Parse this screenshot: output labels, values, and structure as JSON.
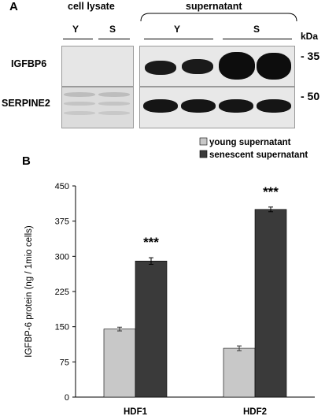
{
  "panel_a": {
    "label": "A",
    "header_cell_lysate": "cell lysate",
    "header_supernatant": "supernatant",
    "lane_labels_lysate": [
      "Y",
      "S"
    ],
    "lane_labels_supernatant": [
      "Y",
      "S"
    ],
    "units_label": "kDa",
    "rows": [
      {
        "name": "IGFBP6",
        "marker": "- 35"
      },
      {
        "name": "SERPINE2",
        "marker": "- 50"
      }
    ]
  },
  "panel_b": {
    "label": "B"
  },
  "chart_data": {
    "type": "bar",
    "categories": [
      "HDF1",
      "HDF2"
    ],
    "series": [
      {
        "name": "young  supernatant",
        "values": [
          145,
          104
        ],
        "errors": [
          4,
          5
        ],
        "color": "#c8c8c8"
      },
      {
        "name": "senescent  supernatant",
        "values": [
          290,
          400
        ],
        "errors": [
          7,
          5
        ],
        "color": "#3a3a3a"
      }
    ],
    "ylabel": "IGFBP-6 protein (ng / 1mio cells)",
    "ylim": [
      0,
      450
    ],
    "yticks": [
      "0",
      "75",
      "150",
      "225",
      "300",
      "375",
      "450"
    ],
    "annotations": [
      "***",
      "***"
    ],
    "legend_position": "top-right",
    "grid": false
  }
}
